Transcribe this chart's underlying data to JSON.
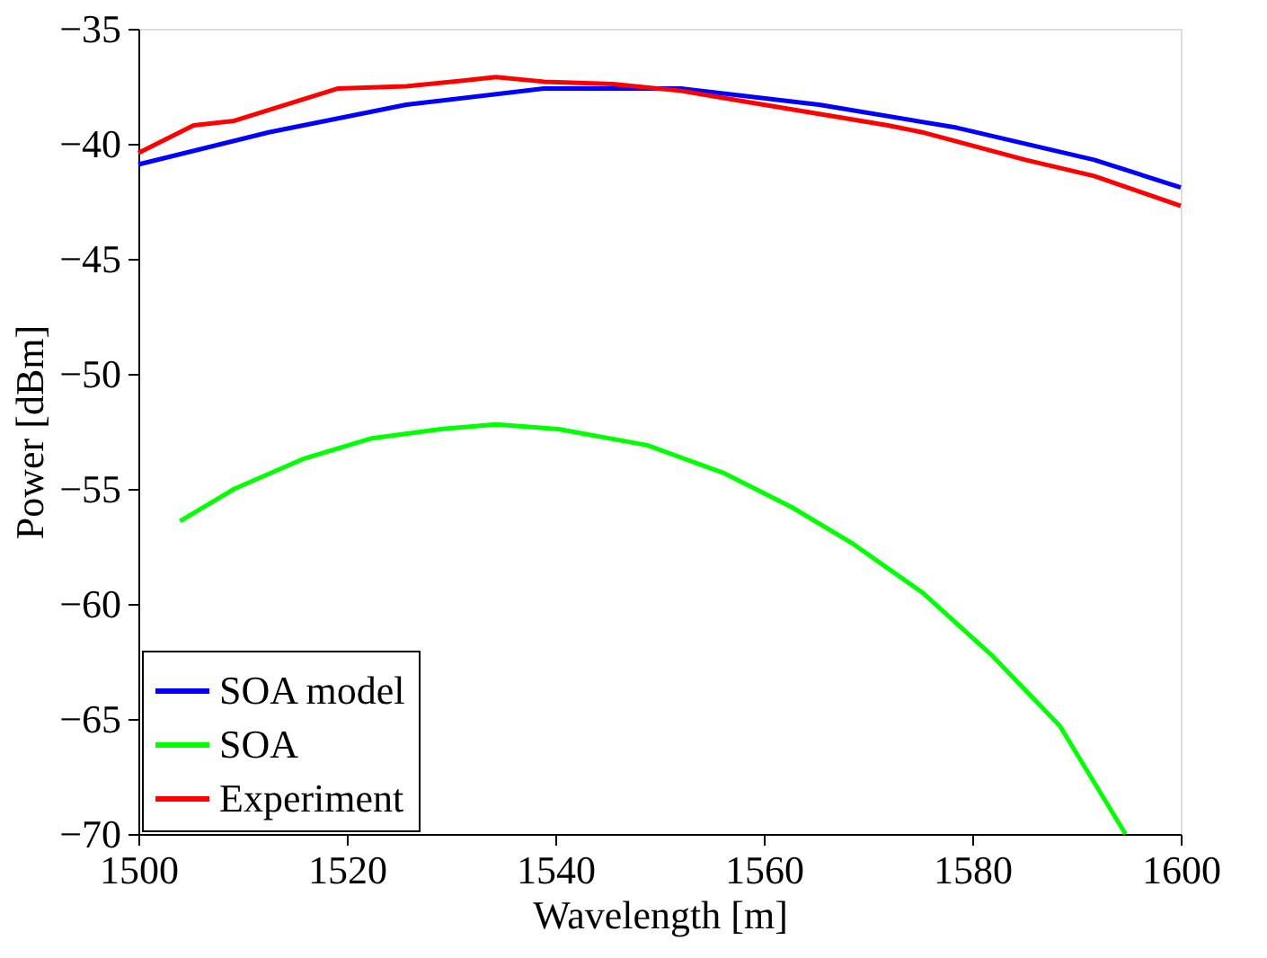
{
  "chart_data": {
    "type": "line",
    "xlabel": "Wavelength [m]",
    "ylabel": "Power [dBm]",
    "xlim": [
      1500,
      1600
    ],
    "xticks": [
      1500,
      1520,
      1540,
      1560,
      1580,
      1600
    ],
    "ylim": [
      -70,
      -35
    ],
    "yticks": [
      -70,
      -65,
      -60,
      -55,
      -50,
      -45,
      -40,
      -35
    ],
    "grid": false,
    "legend": "bottom left",
    "line_style": "solid",
    "marker": "none",
    "series": [
      {
        "name": "SOA model",
        "color": "#0000ff",
        "x": [
          1500,
          1512.5,
          1525.7,
          1538.9,
          1552.1,
          1565.3,
          1578.5,
          1591.7,
          1600
        ],
        "values": [
          -40.9,
          -39.5,
          -38.3,
          -37.6,
          -37.6,
          -38.3,
          -39.3,
          -40.7,
          -41.9
        ]
      },
      {
        "name": "SOA",
        "color": "#00ff00",
        "x": [
          1504,
          1509.2,
          1515.8,
          1522.4,
          1529,
          1534.3,
          1540.3,
          1548.8,
          1556.1,
          1562.7,
          1568.6,
          1575.2,
          1581.8,
          1588.4,
          1594.7
        ],
        "values": [
          -56.4,
          -55.0,
          -53.7,
          -52.8,
          -52.4,
          -52.2,
          -52.4,
          -53.1,
          -54.3,
          -55.8,
          -57.4,
          -59.5,
          -62.2,
          -65.3,
          -70
        ]
      },
      {
        "name": "Experiment",
        "color": "#ff0000",
        "x": [
          1500,
          1505.3,
          1509.2,
          1519.1,
          1525.7,
          1532.3,
          1534.3,
          1538.9,
          1545.5,
          1552.1,
          1558.7,
          1565.3,
          1571.9,
          1575.2,
          1585.1,
          1591.7,
          1600
        ],
        "values": [
          -40.4,
          -39.2,
          -39.0,
          -37.6,
          -37.5,
          -37.2,
          -37.1,
          -37.3,
          -37.4,
          -37.7,
          -38.2,
          -38.7,
          -39.2,
          -39.5,
          -40.7,
          -41.4,
          -42.7
        ]
      }
    ]
  }
}
